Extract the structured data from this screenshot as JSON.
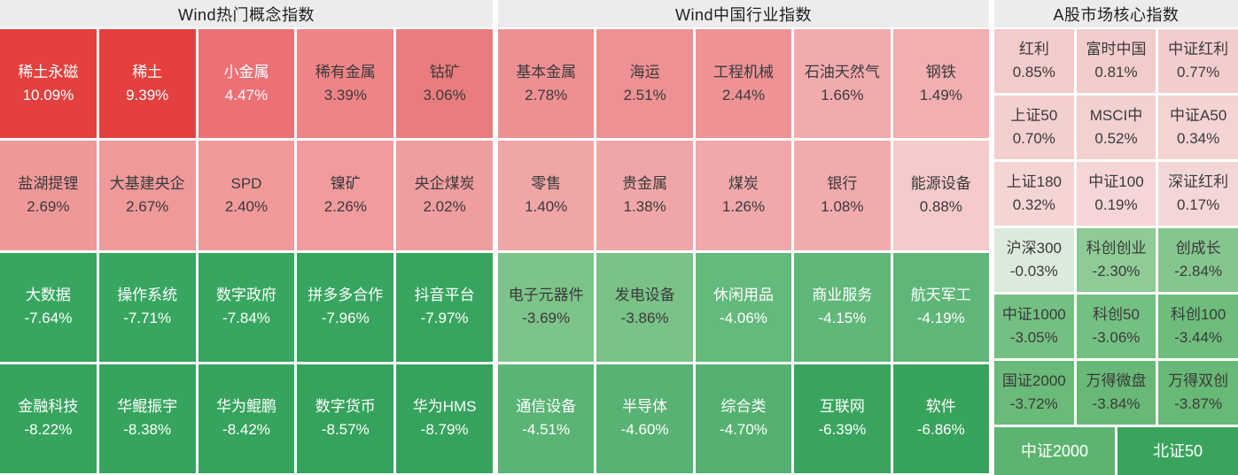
{
  "palette": {
    "background": "#ffffff",
    "header_bg": "#ececec",
    "header_text": "#1f1f1f",
    "text_dark": "#3a3a3a",
    "text_light": "#ffffff",
    "strong_gain": "#e3403f",
    "strong_loss": "#36a45e"
  },
  "sections": [
    {
      "title": "Wind热门概念指数",
      "columns": 5,
      "cells": [
        {
          "name": "稀土永磁",
          "value": "10.09%",
          "bg": "#e3403f",
          "fg": "#ffffff"
        },
        {
          "name": "稀土",
          "value": "9.39%",
          "bg": "#e3403f",
          "fg": "#ffffff"
        },
        {
          "name": "小金属",
          "value": "4.47%",
          "bg": "#ec7175",
          "fg": "#ffffff"
        },
        {
          "name": "稀有金属",
          "value": "3.39%",
          "bg": "#ee8487",
          "fg": "#3a3a3a"
        },
        {
          "name": "钴矿",
          "value": "3.06%",
          "bg": "#ea7c7f",
          "fg": "#3a3a3a"
        },
        {
          "name": "盐湖提锂",
          "value": "2.69%",
          "bg": "#ef989a",
          "fg": "#3a3a3a"
        },
        {
          "name": "大基建央企",
          "value": "2.67%",
          "bg": "#ef999b",
          "fg": "#3a3a3a"
        },
        {
          "name": "SPD",
          "value": "2.40%",
          "bg": "#f09a9c",
          "fg": "#3a3a3a"
        },
        {
          "name": "镍矿",
          "value": "2.26%",
          "bg": "#f09b9d",
          "fg": "#3a3a3a"
        },
        {
          "name": "央企煤炭",
          "value": "2.02%",
          "bg": "#f09da0",
          "fg": "#3a3a3a"
        },
        {
          "name": "大数据",
          "value": "-7.64%",
          "bg": "#38a661",
          "fg": "#ffffff"
        },
        {
          "name": "操作系统",
          "value": "-7.71%",
          "bg": "#38a661",
          "fg": "#ffffff"
        },
        {
          "name": "数字政府",
          "value": "-7.84%",
          "bg": "#38a660",
          "fg": "#ffffff"
        },
        {
          "name": "拼多多合作",
          "value": "-7.96%",
          "bg": "#37a55f",
          "fg": "#ffffff"
        },
        {
          "name": "抖音平台",
          "value": "-7.97%",
          "bg": "#37a55f",
          "fg": "#ffffff"
        },
        {
          "name": "金融科技",
          "value": "-8.22%",
          "bg": "#36a45e",
          "fg": "#ffffff"
        },
        {
          "name": "华鲲振宇",
          "value": "-8.38%",
          "bg": "#36a45e",
          "fg": "#ffffff"
        },
        {
          "name": "华为鲲鹏",
          "value": "-8.42%",
          "bg": "#36a45e",
          "fg": "#ffffff"
        },
        {
          "name": "数字货币",
          "value": "-8.57%",
          "bg": "#35a35d",
          "fg": "#ffffff"
        },
        {
          "name": "华为HMS",
          "value": "-8.79%",
          "bg": "#35a35d",
          "fg": "#ffffff"
        }
      ]
    },
    {
      "title": "Wind中国行业指数",
      "columns": 5,
      "cells": [
        {
          "name": "基本金属",
          "value": "2.78%",
          "bg": "#ee9093",
          "fg": "#3a3a3a"
        },
        {
          "name": "海运",
          "value": "2.51%",
          "bg": "#ee9194",
          "fg": "#3a3a3a"
        },
        {
          "name": "工程机械",
          "value": "2.44%",
          "bg": "#ee9295",
          "fg": "#3a3a3a"
        },
        {
          "name": "石油天然气",
          "value": "1.66%",
          "bg": "#f2abad",
          "fg": "#3a3a3a"
        },
        {
          "name": "钢铁",
          "value": "1.49%",
          "bg": "#f2aeb0",
          "fg": "#3a3a3a"
        },
        {
          "name": "零售",
          "value": "1.40%",
          "bg": "#f0a5a7",
          "fg": "#3a3a3a"
        },
        {
          "name": "贵金属",
          "value": "1.38%",
          "bg": "#f0a6a8",
          "fg": "#3a3a3a"
        },
        {
          "name": "煤炭",
          "value": "1.26%",
          "bg": "#f0a8aa",
          "fg": "#3a3a3a"
        },
        {
          "name": "银行",
          "value": "1.08%",
          "bg": "#f1abad",
          "fg": "#3a3a3a"
        },
        {
          "name": "能源设备",
          "value": "0.88%",
          "bg": "#f6caca",
          "fg": "#3a3a3a"
        },
        {
          "name": "电子元器件",
          "value": "-3.69%",
          "bg": "#7dc48b",
          "fg": "#3a3a3a"
        },
        {
          "name": "发电设备",
          "value": "-3.86%",
          "bg": "#7ac288",
          "fg": "#3a3a3a"
        },
        {
          "name": "休闲用品",
          "value": "-4.06%",
          "bg": "#64b97d",
          "fg": "#ffffff"
        },
        {
          "name": "商业服务",
          "value": "-4.15%",
          "bg": "#60b77a",
          "fg": "#ffffff"
        },
        {
          "name": "航天军工",
          "value": "-4.19%",
          "bg": "#5fb679",
          "fg": "#ffffff"
        },
        {
          "name": "通信设备",
          "value": "-4.51%",
          "bg": "#59b475",
          "fg": "#ffffff"
        },
        {
          "name": "半导体",
          "value": "-4.60%",
          "bg": "#57b273",
          "fg": "#ffffff"
        },
        {
          "name": "综合类",
          "value": "-4.70%",
          "bg": "#55b171",
          "fg": "#ffffff"
        },
        {
          "name": "互联网",
          "value": "-6.39%",
          "bg": "#3aa45e",
          "fg": "#ffffff"
        },
        {
          "name": "软件",
          "value": "-6.86%",
          "bg": "#38a35b",
          "fg": "#ffffff"
        }
      ]
    },
    {
      "title": "A股市场核心指数",
      "columns": 3,
      "cells": [
        {
          "name": "红利",
          "value": "0.85%",
          "bg": "#f3cbcb",
          "fg": "#3a3a3a"
        },
        {
          "name": "富时中国",
          "value": "0.81%",
          "bg": "#f3cccc",
          "fg": "#3a3a3a"
        },
        {
          "name": "中证红利",
          "value": "0.77%",
          "bg": "#f3cdcd",
          "fg": "#3a3a3a"
        },
        {
          "name": "上证50",
          "value": "0.70%",
          "bg": "#f4cfcf",
          "fg": "#3a3a3a"
        },
        {
          "name": "MSCI中",
          "value": "0.52%",
          "bg": "#f4d1d1",
          "fg": "#3a3a3a"
        },
        {
          "name": "中证A50",
          "value": "0.34%",
          "bg": "#f5d3d3",
          "fg": "#3a3a3a"
        },
        {
          "name": "上证180",
          "value": "0.32%",
          "bg": "#f5d4d4",
          "fg": "#3a3a3a"
        },
        {
          "name": "中证100",
          "value": "0.19%",
          "bg": "#f5d5d5",
          "fg": "#3a3a3a"
        },
        {
          "name": "深证红利",
          "value": "0.17%",
          "bg": "#f5d6d6",
          "fg": "#3a3a3a"
        },
        {
          "name": "沪深300",
          "value": "-0.03%",
          "bg": "#dceadb",
          "fg": "#3a3a3a"
        },
        {
          "name": "科创创业",
          "value": "-2.30%",
          "bg": "#8fcb97",
          "fg": "#3a3a3a"
        },
        {
          "name": "创成长",
          "value": "-2.84%",
          "bg": "#85c68e",
          "fg": "#3a3a3a"
        },
        {
          "name": "中证1000",
          "value": "-3.05%",
          "bg": "#74c082",
          "fg": "#3a3a3a"
        },
        {
          "name": "科创50",
          "value": "-3.06%",
          "bg": "#74c082",
          "fg": "#3a3a3a"
        },
        {
          "name": "科创100",
          "value": "-3.44%",
          "bg": "#6ebd7d",
          "fg": "#3a3a3a"
        },
        {
          "name": "国证2000",
          "value": "-3.72%",
          "bg": "#6aba79",
          "fg": "#3a3a3a"
        },
        {
          "name": "万得微盘",
          "value": "-3.84%",
          "bg": "#68b977",
          "fg": "#3a3a3a"
        },
        {
          "name": "万得双创",
          "value": "-3.87%",
          "bg": "#67b976",
          "fg": "#3a3a3a"
        }
      ],
      "footer_cells": [
        {
          "name": "中证2000",
          "bg": "#5db471",
          "fg": "#ffffff"
        },
        {
          "name": "北证50",
          "bg": "#3aa45c",
          "fg": "#ffffff"
        }
      ]
    }
  ],
  "chart_data": {
    "type": "heatmap",
    "unit": "%",
    "groups": [
      {
        "title": "Wind热门概念指数",
        "grid": "5x4",
        "categories": [
          "稀土永磁",
          "稀土",
          "小金属",
          "稀有金属",
          "钴矿",
          "盐湖提锂",
          "大基建央企",
          "SPD",
          "镍矿",
          "央企煤炭",
          "大数据",
          "操作系统",
          "数字政府",
          "拼多多合作",
          "抖音平台",
          "金融科技",
          "华鲲振宇",
          "华为鲲鹏",
          "数字货币",
          "华为HMS"
        ],
        "values": [
          10.09,
          9.39,
          4.47,
          3.39,
          3.06,
          2.69,
          2.67,
          2.4,
          2.26,
          2.02,
          -7.64,
          -7.71,
          -7.84,
          -7.96,
          -7.97,
          -8.22,
          -8.38,
          -8.42,
          -8.57,
          -8.79
        ]
      },
      {
        "title": "Wind中国行业指数",
        "grid": "5x4",
        "categories": [
          "基本金属",
          "海运",
          "工程机械",
          "石油天然气",
          "钢铁",
          "零售",
          "贵金属",
          "煤炭",
          "银行",
          "能源设备",
          "电子元器件",
          "发电设备",
          "休闲用品",
          "商业服务",
          "航天军工",
          "通信设备",
          "半导体",
          "综合类",
          "互联网",
          "软件"
        ],
        "values": [
          2.78,
          2.51,
          2.44,
          1.66,
          1.49,
          1.4,
          1.38,
          1.26,
          1.08,
          0.88,
          -3.69,
          -3.86,
          -4.06,
          -4.15,
          -4.19,
          -4.51,
          -4.6,
          -4.7,
          -6.39,
          -6.86
        ]
      },
      {
        "title": "A股市场核心指数",
        "grid": "3x6",
        "categories": [
          "红利",
          "富时中国",
          "中证红利",
          "上证50",
          "MSCI中",
          "中证A50",
          "上证180",
          "中证100",
          "深证红利",
          "沪深300",
          "科创创业",
          "创成长",
          "中证1000",
          "科创50",
          "科创100",
          "国证2000",
          "万得微盘",
          "万得双创"
        ],
        "values": [
          0.85,
          0.81,
          0.77,
          0.7,
          0.52,
          0.34,
          0.32,
          0.19,
          0.17,
          -0.03,
          -2.3,
          -2.84,
          -3.05,
          -3.06,
          -3.44,
          -3.72,
          -3.84,
          -3.87
        ],
        "partial_tiles_no_value_visible": [
          "中证2000",
          "北证50"
        ]
      }
    ],
    "color_encoding": "red = gain, green = loss, intensity scales with magnitude"
  }
}
